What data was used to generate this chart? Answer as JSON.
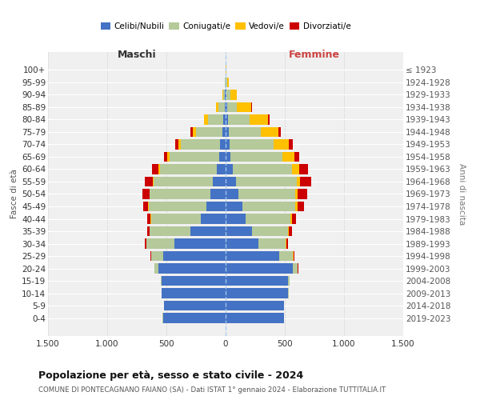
{
  "age_groups": [
    "0-4",
    "5-9",
    "10-14",
    "15-19",
    "20-24",
    "25-29",
    "30-34",
    "35-39",
    "40-44",
    "45-49",
    "50-54",
    "55-59",
    "60-64",
    "65-69",
    "70-74",
    "75-79",
    "80-84",
    "85-89",
    "90-94",
    "95-99",
    "100+"
  ],
  "birth_years": [
    "2019-2023",
    "2014-2018",
    "2009-2013",
    "2004-2008",
    "1999-2003",
    "1994-1998",
    "1989-1993",
    "1984-1988",
    "1979-1983",
    "1974-1978",
    "1969-1973",
    "1964-1968",
    "1959-1963",
    "1954-1958",
    "1949-1953",
    "1944-1948",
    "1939-1943",
    "1934-1938",
    "1929-1933",
    "1924-1928",
    "≤ 1923"
  ],
  "maschi": {
    "celibe": [
      530,
      520,
      540,
      540,
      570,
      530,
      430,
      300,
      210,
      160,
      130,
      110,
      75,
      55,
      50,
      30,
      20,
      8,
      5,
      3,
      2
    ],
    "coniugato": [
      1,
      1,
      2,
      5,
      30,
      100,
      240,
      340,
      420,
      490,
      510,
      500,
      480,
      420,
      330,
      220,
      130,
      55,
      15,
      5,
      1
    ],
    "vedovo": [
      0,
      0,
      0,
      0,
      0,
      1,
      1,
      2,
      2,
      3,
      5,
      5,
      10,
      15,
      20,
      30,
      30,
      15,
      5,
      1,
      0
    ],
    "divorziato": [
      0,
      0,
      0,
      0,
      2,
      5,
      10,
      20,
      30,
      40,
      55,
      70,
      55,
      30,
      25,
      15,
      5,
      2,
      0,
      0,
      0
    ]
  },
  "femmine": {
    "nubile": [
      490,
      490,
      530,
      530,
      570,
      450,
      280,
      220,
      170,
      140,
      110,
      90,
      60,
      40,
      35,
      25,
      20,
      15,
      8,
      3,
      2
    ],
    "coniugata": [
      1,
      1,
      3,
      10,
      40,
      120,
      230,
      310,
      380,
      450,
      480,
      510,
      500,
      440,
      370,
      270,
      180,
      80,
      30,
      10,
      1
    ],
    "vedova": [
      0,
      0,
      0,
      0,
      1,
      2,
      3,
      5,
      10,
      15,
      20,
      30,
      60,
      100,
      130,
      150,
      160,
      120,
      55,
      15,
      3
    ],
    "divorziata": [
      0,
      0,
      0,
      1,
      3,
      8,
      15,
      25,
      35,
      55,
      80,
      90,
      75,
      40,
      30,
      20,
      10,
      5,
      2,
      0,
      0
    ]
  },
  "colors": {
    "celibe": "#4472c4",
    "coniugato": "#b5c99a",
    "vedovo": "#ffc000",
    "divorziato": "#cc0000"
  },
  "legend_labels": [
    "Celibi/Nubili",
    "Coniugati/e",
    "Vedovi/e",
    "Divorziati/e"
  ],
  "title": "Popolazione per età, sesso e stato civile - 2024",
  "subtitle": "COMUNE DI PONTECAGNANO FAIANO (SA) - Dati ISTAT 1° gennaio 2024 - Elaborazione TUTTITALIA.IT",
  "ylabel_left": "Fasce di età",
  "ylabel_right": "Anni di nascita",
  "xlim": 1500,
  "background_color": "#ffffff",
  "plot_bg_color": "#f0f0f0"
}
